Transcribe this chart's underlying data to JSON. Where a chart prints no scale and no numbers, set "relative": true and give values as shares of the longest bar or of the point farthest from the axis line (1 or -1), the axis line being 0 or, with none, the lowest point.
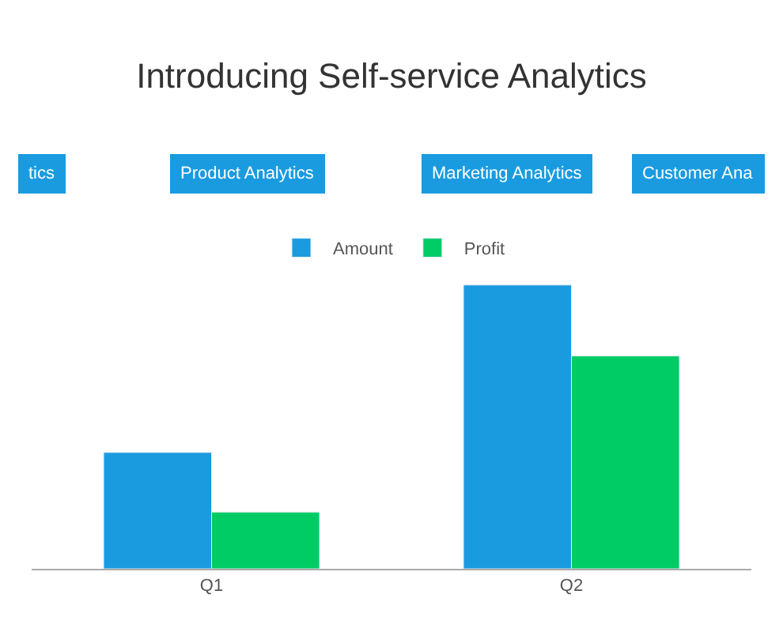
{
  "chart_data": {
    "type": "bar",
    "title": "Introducing Self-service Analytics",
    "annotations": [
      "tics",
      "Product Analytics",
      "Marketing Analytics",
      "Customer Ana"
    ],
    "categories": [
      "Q1",
      "Q2"
    ],
    "relative": true,
    "series": [
      {
        "name": "Amount",
        "color": "#1a9be0",
        "values": [
          0.41,
          1
        ]
      },
      {
        "name": "Profit",
        "color": "#00cc66",
        "values": [
          0.2,
          0.75
        ]
      }
    ],
    "legend": "top"
  }
}
